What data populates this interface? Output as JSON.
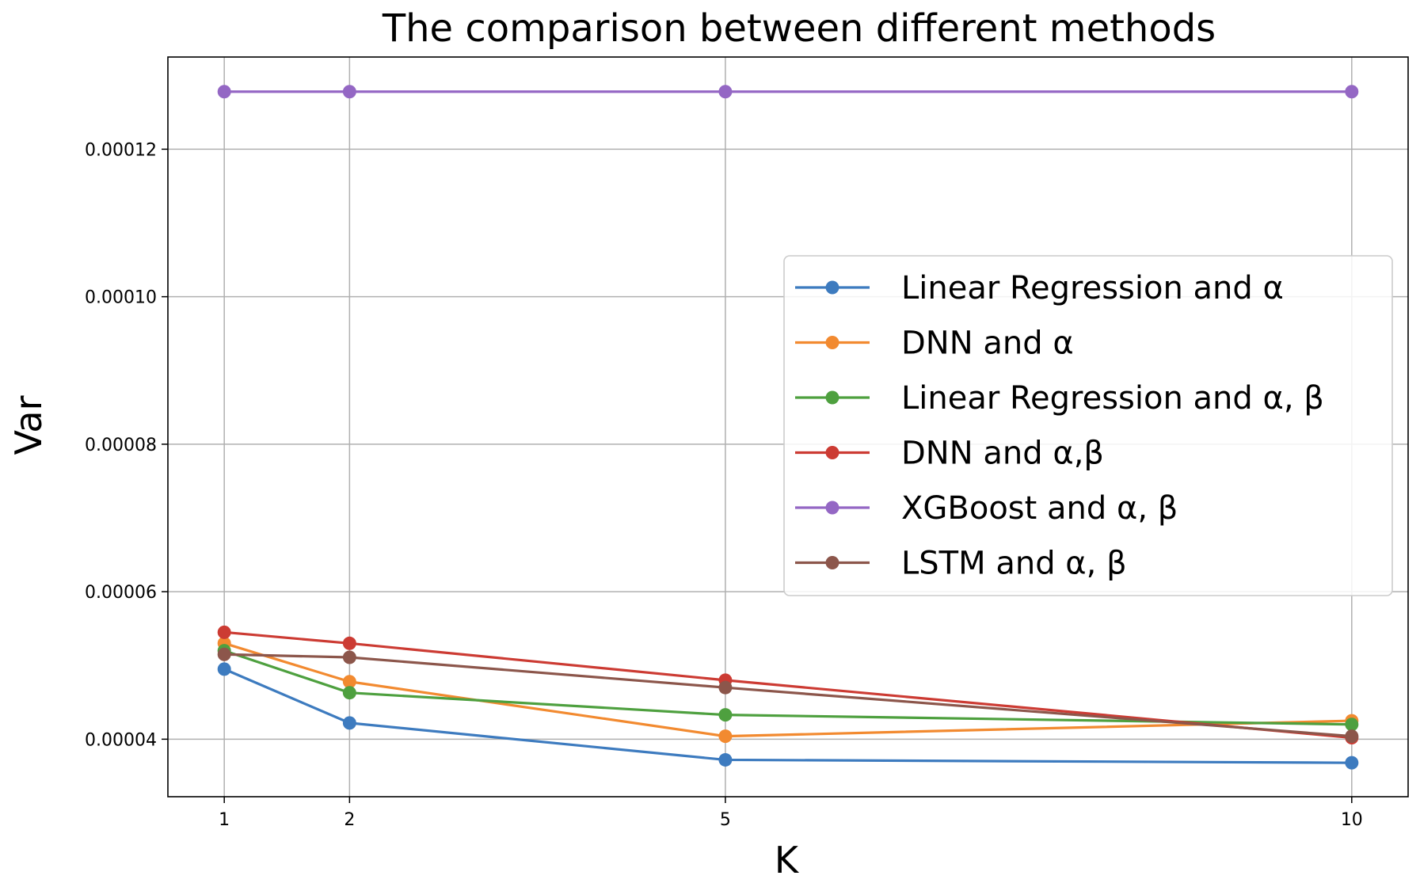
{
  "chart_data": {
    "type": "line",
    "title": "The comparison between different methods",
    "xlabel": "K",
    "ylabel": "Var",
    "x": [
      1,
      2,
      5,
      10
    ],
    "xticks": [
      "1",
      "2",
      "5",
      "10"
    ],
    "xlim": [
      0.55,
      10.45
    ],
    "yticks": [
      4e-05,
      6e-05,
      8e-05,
      0.0001,
      0.00012
    ],
    "ytick_labels": [
      "0.00004",
      "0.00006",
      "0.00008",
      "0.00010",
      "0.00012"
    ],
    "ylim": [
      3.22e-05,
      0.0001325
    ],
    "grid": true,
    "legend_position": "center-right",
    "series": [
      {
        "name": "Linear Regression and α",
        "color": "#3d7bbf",
        "values": [
          4.95e-05,
          4.22e-05,
          3.72e-05,
          3.68e-05
        ]
      },
      {
        "name": "DNN and α",
        "color": "#f28a30",
        "values": [
          5.3e-05,
          4.78e-05,
          4.04e-05,
          4.25e-05
        ]
      },
      {
        "name": "Linear Regression and α, β",
        "color": "#4ea03f",
        "values": [
          5.2e-05,
          4.63e-05,
          4.33e-05,
          4.2e-05
        ]
      },
      {
        "name": "DNN and α,β",
        "color": "#cc3b33",
        "values": [
          5.45e-05,
          5.3e-05,
          4.8e-05,
          4.02e-05
        ]
      },
      {
        "name": "XGBoost and α, β",
        "color": "#9467c4",
        "values": [
          0.0001278,
          0.0001278,
          0.0001278,
          0.0001278
        ]
      },
      {
        "name": "LSTM and α, β",
        "color": "#8c564b",
        "values": [
          5.15e-05,
          5.11e-05,
          4.7e-05,
          4.04e-05
        ]
      }
    ]
  }
}
